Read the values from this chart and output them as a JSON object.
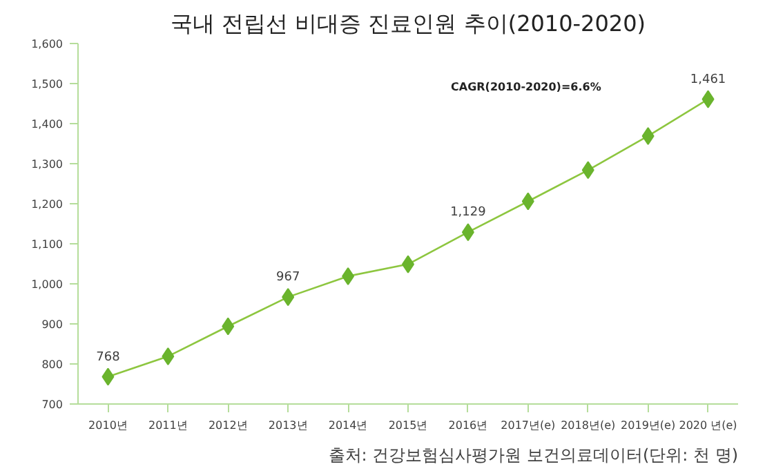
{
  "chart_data": {
    "type": "line",
    "title": "국내 전립선 비대증 진료인원 추이(2010-2020)",
    "categories": [
      "2010년",
      "2011년",
      "2012년",
      "2013년",
      "2014년",
      "2015년",
      "2016년",
      "2017년(e)",
      "2018년(e)",
      "2019년(e)",
      "2020 년(e)"
    ],
    "series": [
      {
        "color": "#8dc63f",
        "values": [
          768,
          819,
          894,
          967,
          1019,
          1049,
          1129,
          1206,
          1284,
          1369,
          1461
        ],
        "value_labels": [
          "768",
          null,
          null,
          "967",
          null,
          null,
          "1,129",
          null,
          null,
          null,
          "1,461"
        ]
      }
    ],
    "ylim": [
      700,
      1600
    ],
    "yticks": [
      700,
      800,
      900,
      {
        "value": 1000,
        "label": "1,000"
      },
      {
        "value": 1100,
        "label": "1,100"
      },
      {
        "value": 1200,
        "label": "1,200"
      },
      {
        "value": 1300,
        "label": "1,300"
      },
      {
        "value": 1400,
        "label": "1,400"
      },
      {
        "value": 1500,
        "label": "1,500"
      },
      {
        "value": 1600,
        "label": "1,600"
      }
    ],
    "marker": "diamond",
    "grid": false,
    "annotations": [
      "CAGR(2010-2020)=6.6%",
      "출처: 건강보험심사평가원 보건의료데이터(단위: 천 명)"
    ]
  }
}
